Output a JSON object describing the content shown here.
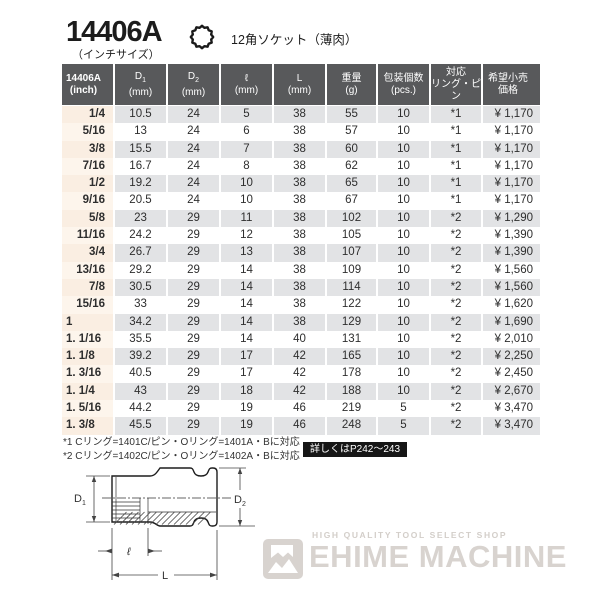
{
  "header": {
    "product_code": "14406A",
    "size_note": "（インチサイズ）",
    "product_type": "12角ソケット（薄肉）",
    "icon": "12-point-socket-profile-icon"
  },
  "table": {
    "columns": [
      {
        "line1": "14406A",
        "line2": "(inch)"
      },
      {
        "line1": "D",
        "sub": "1",
        "line2": "(mm)"
      },
      {
        "line1": "D",
        "sub": "2",
        "line2": "(mm)"
      },
      {
        "line1": "ℓ",
        "line2": "(mm)"
      },
      {
        "line1": "L",
        "line2": "(mm)"
      },
      {
        "line1": "重量",
        "line2": "(g)"
      },
      {
        "line1": "包装個数",
        "line2": "(pcs.)"
      },
      {
        "line1": "対応",
        "line2": "リング・ピン"
      },
      {
        "line1": "希望小売",
        "line2": "価格"
      }
    ],
    "rows": [
      [
        "1/4",
        "10.5",
        "24",
        "5",
        "38",
        "55",
        "10",
        "*1",
        "¥ 1,170"
      ],
      [
        "5/16",
        "13",
        "24",
        "6",
        "38",
        "57",
        "10",
        "*1",
        "¥ 1,170"
      ],
      [
        "3/8",
        "15.5",
        "24",
        "7",
        "38",
        "60",
        "10",
        "*1",
        "¥ 1,170"
      ],
      [
        "7/16",
        "16.7",
        "24",
        "8",
        "38",
        "62",
        "10",
        "*1",
        "¥ 1,170"
      ],
      [
        "1/2",
        "19.2",
        "24",
        "10",
        "38",
        "65",
        "10",
        "*1",
        "¥ 1,170"
      ],
      [
        "9/16",
        "20.5",
        "24",
        "10",
        "38",
        "67",
        "10",
        "*1",
        "¥ 1,170"
      ],
      [
        "5/8",
        "23",
        "29",
        "11",
        "38",
        "102",
        "10",
        "*2",
        "¥ 1,290"
      ],
      [
        "11/16",
        "24.2",
        "29",
        "12",
        "38",
        "105",
        "10",
        "*2",
        "¥ 1,390"
      ],
      [
        "3/4",
        "26.7",
        "29",
        "13",
        "38",
        "107",
        "10",
        "*2",
        "¥ 1,390"
      ],
      [
        "13/16",
        "29.2",
        "29",
        "14",
        "38",
        "109",
        "10",
        "*2",
        "¥ 1,560"
      ],
      [
        "7/8",
        "30.5",
        "29",
        "14",
        "38",
        "114",
        "10",
        "*2",
        "¥ 1,560"
      ],
      [
        "15/16",
        "33",
        "29",
        "14",
        "38",
        "122",
        "10",
        "*2",
        "¥ 1,620"
      ],
      [
        "1",
        "34.2",
        "29",
        "14",
        "38",
        "129",
        "10",
        "*2",
        "¥ 1,690"
      ],
      [
        "1. 1/16",
        "35.5",
        "29",
        "14",
        "40",
        "131",
        "10",
        "*2",
        "¥ 2,010"
      ],
      [
        "1. 1/8",
        "39.2",
        "29",
        "17",
        "42",
        "165",
        "10",
        "*2",
        "¥ 2,250"
      ],
      [
        "1. 3/16",
        "40.5",
        "29",
        "17",
        "42",
        "178",
        "10",
        "*2",
        "¥ 2,450"
      ],
      [
        "1. 1/4",
        "43",
        "29",
        "18",
        "42",
        "188",
        "10",
        "*2",
        "¥ 2,670"
      ],
      [
        "1. 5/16",
        "44.2",
        "29",
        "19",
        "46",
        "219",
        "5",
        "*2",
        "¥ 3,470"
      ],
      [
        "1. 3/8",
        "45.5",
        "29",
        "19",
        "46",
        "248",
        "5",
        "*2",
        "¥ 3,470"
      ]
    ]
  },
  "notes": {
    "note1": "*1 Cリング=1401C/ピン・Oリング=1401A・Bに対応",
    "note2": "*2 Cリング=1402C/ピン・Oリング=1402A・Bに対応",
    "badge": "詳しくはP242～243"
  },
  "diagram": {
    "d1_main": "D",
    "d1_sub": "1",
    "d2_main": "D",
    "d2_sub": "2",
    "length_label": "ℓ",
    "total_length_label": "L"
  },
  "logo": {
    "tagline": "HIGH QUALITY TOOL SELECT SHOP",
    "name": "EHIME MACHINE"
  },
  "colors": {
    "header_bg": "#58595b",
    "row_gray": "#e2e3e5",
    "row_white": "#ffffff",
    "inch_col_cream_dark": "#faeee2",
    "inch_col_cream_light": "#fdf5ec",
    "badge_bg": "#161616",
    "logo_gray": "#d8d3cf",
    "text": "#2e2e2e"
  }
}
